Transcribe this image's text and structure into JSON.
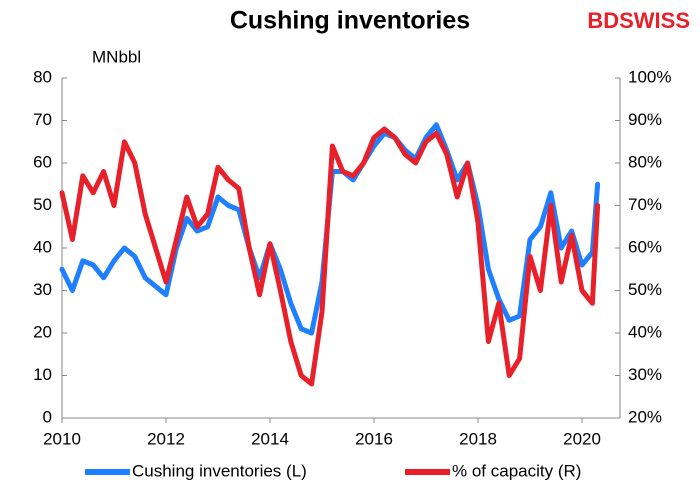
{
  "chart_data": {
    "type": "line",
    "title": "Cushing inventories",
    "logo": "BDSWISS",
    "annotation": "MNbbl",
    "x": [
      2010.0,
      2010.2,
      2010.4,
      2010.6,
      2010.8,
      2011.0,
      2011.2,
      2011.4,
      2011.6,
      2011.8,
      2012.0,
      2012.2,
      2012.4,
      2012.6,
      2012.8,
      2013.0,
      2013.2,
      2013.4,
      2013.6,
      2013.8,
      2014.0,
      2014.2,
      2014.4,
      2014.6,
      2014.8,
      2015.0,
      2015.2,
      2015.4,
      2015.6,
      2015.8,
      2016.0,
      2016.2,
      2016.4,
      2016.6,
      2016.8,
      2017.0,
      2017.2,
      2017.4,
      2017.6,
      2017.8,
      2018.0,
      2018.2,
      2018.4,
      2018.6,
      2018.8,
      2019.0,
      2019.2,
      2019.4,
      2019.6,
      2019.8,
      2020.0,
      2020.2,
      2020.3
    ],
    "series": [
      {
        "name": "Cushing inventories (L)",
        "color": "#1e7fff",
        "axis": "y",
        "values": [
          35,
          30,
          37,
          36,
          33,
          37,
          40,
          38,
          33,
          31,
          29,
          40,
          47,
          44,
          45,
          52,
          50,
          49,
          40,
          33,
          41,
          35,
          27,
          21,
          20,
          32,
          58,
          58,
          56,
          60,
          64,
          67,
          66,
          63,
          61,
          66,
          69,
          63,
          56,
          60,
          50,
          35,
          28,
          23,
          24,
          42,
          45,
          53,
          40,
          44,
          36,
          39,
          55
        ]
      },
      {
        "name": "% of capacity (R)",
        "color": "#e8202a",
        "axis": "y2",
        "values": [
          73,
          62,
          77,
          73,
          78,
          70,
          85,
          80,
          68,
          60,
          52,
          62,
          72,
          65,
          68,
          79,
          76,
          74,
          60,
          49,
          61,
          50,
          38,
          30,
          28,
          45,
          84,
          78,
          77,
          80,
          86,
          88,
          86,
          82,
          80,
          85,
          87,
          82,
          72,
          80,
          66,
          38,
          47,
          30,
          34,
          58,
          50,
          70,
          52,
          63,
          50,
          47,
          70
        ]
      }
    ],
    "xlim": [
      2010,
      2020.73
    ],
    "xticks": [
      2010,
      2012,
      2014,
      2016,
      2018,
      2020
    ],
    "ylim": [
      0,
      80
    ],
    "yticks": [
      0,
      10,
      20,
      30,
      40,
      50,
      60,
      70,
      80
    ],
    "y2lim": [
      20,
      100
    ],
    "y2ticks": [
      {
        "value": 20,
        "label": "20%"
      },
      {
        "value": 30,
        "label": "30%"
      },
      {
        "value": 40,
        "label": "40%"
      },
      {
        "value": 50,
        "label": "50%"
      },
      {
        "value": 60,
        "label": "60%"
      },
      {
        "value": 70,
        "label": "70%"
      },
      {
        "value": 80,
        "label": "80%"
      },
      {
        "value": 90,
        "label": "90%"
      },
      {
        "value": 100,
        "label": "100%"
      }
    ],
    "grid": false
  }
}
